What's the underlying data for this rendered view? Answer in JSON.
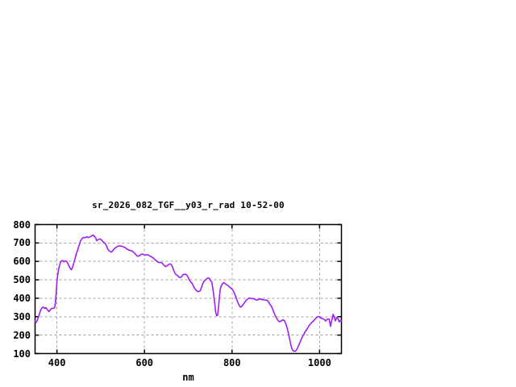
{
  "chart_data": {
    "type": "line",
    "title": "sr_2026_082_TGF__y03_r_rad 10-52-00",
    "xlabel": "nm",
    "ylabel": "",
    "xlim": [
      350,
      1050
    ],
    "ylim": [
      100,
      800
    ],
    "x_ticks": [
      400,
      600,
      800,
      1000
    ],
    "y_ticks": [
      100,
      200,
      300,
      400,
      500,
      600,
      700,
      800
    ],
    "grid": true,
    "legend_position": "none",
    "line_color": "#a020f0",
    "grid_color": "#a0a0a0",
    "border_color": "#000000",
    "text_color": "#000000",
    "background_color": "#ffffff",
    "points": [
      [
        350,
        278
      ],
      [
        352,
        268
      ],
      [
        355,
        280
      ],
      [
        358,
        300
      ],
      [
        362,
        330
      ],
      [
        366,
        349
      ],
      [
        369,
        352
      ],
      [
        372,
        345
      ],
      [
        375,
        349
      ],
      [
        378,
        338
      ],
      [
        382,
        328
      ],
      [
        385,
        338
      ],
      [
        388,
        345
      ],
      [
        392,
        346
      ],
      [
        395,
        350
      ],
      [
        397,
        385
      ],
      [
        399,
        455
      ],
      [
        400,
        490
      ],
      [
        402,
        530
      ],
      [
        404,
        558
      ],
      [
        406,
        580
      ],
      [
        408,
        595
      ],
      [
        410,
        601
      ],
      [
        413,
        605
      ],
      [
        416,
        598
      ],
      [
        419,
        603
      ],
      [
        422,
        600
      ],
      [
        425,
        588
      ],
      [
        428,
        572
      ],
      [
        431,
        560
      ],
      [
        433,
        555
      ],
      [
        436,
        570
      ],
      [
        440,
        605
      ],
      [
        443,
        630
      ],
      [
        445,
        646
      ],
      [
        448,
        668
      ],
      [
        451,
        690
      ],
      [
        454,
        712
      ],
      [
        457,
        722
      ],
      [
        460,
        730
      ],
      [
        463,
        728
      ],
      [
        466,
        731
      ],
      [
        469,
        734
      ],
      [
        472,
        729
      ],
      [
        475,
        733
      ],
      [
        478,
        736
      ],
      [
        481,
        741
      ],
      [
        483,
        743
      ],
      [
        485,
        737
      ],
      [
        488,
        730
      ],
      [
        491,
        712
      ],
      [
        494,
        718
      ],
      [
        497,
        722
      ],
      [
        500,
        720
      ],
      [
        503,
        712
      ],
      [
        506,
        705
      ],
      [
        510,
        697
      ],
      [
        513,
        685
      ],
      [
        516,
        668
      ],
      [
        519,
        658
      ],
      [
        522,
        653
      ],
      [
        525,
        651
      ],
      [
        528,
        660
      ],
      [
        531,
        669
      ],
      [
        534,
        675
      ],
      [
        537,
        679
      ],
      [
        540,
        683
      ],
      [
        543,
        684
      ],
      [
        546,
        683
      ],
      [
        550,
        680
      ],
      [
        553,
        678
      ],
      [
        556,
        675
      ],
      [
        559,
        668
      ],
      [
        562,
        665
      ],
      [
        565,
        661
      ],
      [
        568,
        659
      ],
      [
        571,
        657
      ],
      [
        574,
        652
      ],
      [
        577,
        646
      ],
      [
        580,
        637
      ],
      [
        583,
        630
      ],
      [
        586,
        628
      ],
      [
        589,
        632
      ],
      [
        592,
        638
      ],
      [
        595,
        640
      ],
      [
        598,
        637
      ],
      [
        601,
        633
      ],
      [
        604,
        636
      ],
      [
        607,
        637
      ],
      [
        610,
        633
      ],
      [
        613,
        629
      ],
      [
        616,
        624
      ],
      [
        619,
        621
      ],
      [
        622,
        613
      ],
      [
        625,
        608
      ],
      [
        628,
        601
      ],
      [
        631,
        596
      ],
      [
        634,
        594
      ],
      [
        637,
        594
      ],
      [
        640,
        592
      ],
      [
        643,
        583
      ],
      [
        646,
        575
      ],
      [
        649,
        572
      ],
      [
        652,
        577
      ],
      [
        655,
        583
      ],
      [
        658,
        586
      ],
      [
        661,
        584
      ],
      [
        664,
        570
      ],
      [
        667,
        550
      ],
      [
        670,
        535
      ],
      [
        673,
        527
      ],
      [
        676,
        522
      ],
      [
        679,
        514
      ],
      [
        682,
        512
      ],
      [
        685,
        518
      ],
      [
        688,
        528
      ],
      [
        691,
        530
      ],
      [
        694,
        530
      ],
      [
        697,
        525
      ],
      [
        700,
        512
      ],
      [
        703,
        498
      ],
      [
        706,
        488
      ],
      [
        709,
        480
      ],
      [
        712,
        465
      ],
      [
        715,
        452
      ],
      [
        718,
        443
      ],
      [
        721,
        438
      ],
      [
        724,
        436
      ],
      [
        727,
        440
      ],
      [
        730,
        458
      ],
      [
        733,
        478
      ],
      [
        736,
        492
      ],
      [
        739,
        499
      ],
      [
        742,
        505
      ],
      [
        745,
        510
      ],
      [
        748,
        508
      ],
      [
        751,
        495
      ],
      [
        754,
        487
      ],
      [
        757,
        440
      ],
      [
        760,
        380
      ],
      [
        763,
        320
      ],
      [
        765,
        305
      ],
      [
        767,
        308
      ],
      [
        769,
        350
      ],
      [
        771,
        400
      ],
      [
        773,
        448
      ],
      [
        775,
        465
      ],
      [
        778,
        478
      ],
      [
        781,
        485
      ],
      [
        784,
        480
      ],
      [
        787,
        474
      ],
      [
        790,
        470
      ],
      [
        793,
        464
      ],
      [
        796,
        458
      ],
      [
        800,
        450
      ],
      [
        803,
        440
      ],
      [
        806,
        425
      ],
      [
        809,
        405
      ],
      [
        812,
        385
      ],
      [
        815,
        368
      ],
      [
        818,
        354
      ],
      [
        820,
        352
      ],
      [
        823,
        358
      ],
      [
        826,
        368
      ],
      [
        829,
        378
      ],
      [
        832,
        388
      ],
      [
        835,
        395
      ],
      [
        838,
        400
      ],
      [
        841,
        400
      ],
      [
        844,
        399
      ],
      [
        847,
        398
      ],
      [
        850,
        397
      ],
      [
        853,
        393
      ],
      [
        856,
        390
      ],
      [
        859,
        392
      ],
      [
        862,
        395
      ],
      [
        865,
        396
      ],
      [
        868,
        394
      ],
      [
        871,
        392
      ],
      [
        874,
        391
      ],
      [
        878,
        390
      ],
      [
        881,
        388
      ],
      [
        884,
        378
      ],
      [
        887,
        366
      ],
      [
        890,
        357
      ],
      [
        893,
        340
      ],
      [
        896,
        320
      ],
      [
        899,
        305
      ],
      [
        902,
        291
      ],
      [
        905,
        280
      ],
      [
        908,
        273
      ],
      [
        911,
        275
      ],
      [
        914,
        280
      ],
      [
        917,
        283
      ],
      [
        920,
        278
      ],
      [
        923,
        260
      ],
      [
        926,
        238
      ],
      [
        929,
        210
      ],
      [
        932,
        175
      ],
      [
        935,
        140
      ],
      [
        938,
        120
      ],
      [
        941,
        113
      ],
      [
        944,
        112
      ],
      [
        947,
        118
      ],
      [
        950,
        132
      ],
      [
        953,
        148
      ],
      [
        956,
        165
      ],
      [
        959,
        182
      ],
      [
        962,
        196
      ],
      [
        964,
        203
      ],
      [
        967,
        218
      ],
      [
        970,
        228
      ],
      [
        973,
        239
      ],
      [
        976,
        252
      ],
      [
        979,
        260
      ],
      [
        982,
        268
      ],
      [
        985,
        274
      ],
      [
        988,
        283
      ],
      [
        991,
        290
      ],
      [
        994,
        297
      ],
      [
        997,
        301
      ],
      [
        1000,
        300
      ],
      [
        1003,
        293
      ],
      [
        1006,
        290
      ],
      [
        1009,
        288
      ],
      [
        1012,
        282
      ],
      [
        1014,
        277
      ],
      [
        1017,
        285
      ],
      [
        1020,
        288
      ],
      [
        1022,
        287
      ],
      [
        1025,
        248
      ],
      [
        1028,
        280
      ],
      [
        1031,
        313
      ],
      [
        1034,
        295
      ],
      [
        1036,
        277
      ],
      [
        1039,
        294
      ],
      [
        1042,
        290
      ],
      [
        1045,
        272
      ],
      [
        1048,
        280
      ],
      [
        1050,
        278
      ]
    ]
  }
}
